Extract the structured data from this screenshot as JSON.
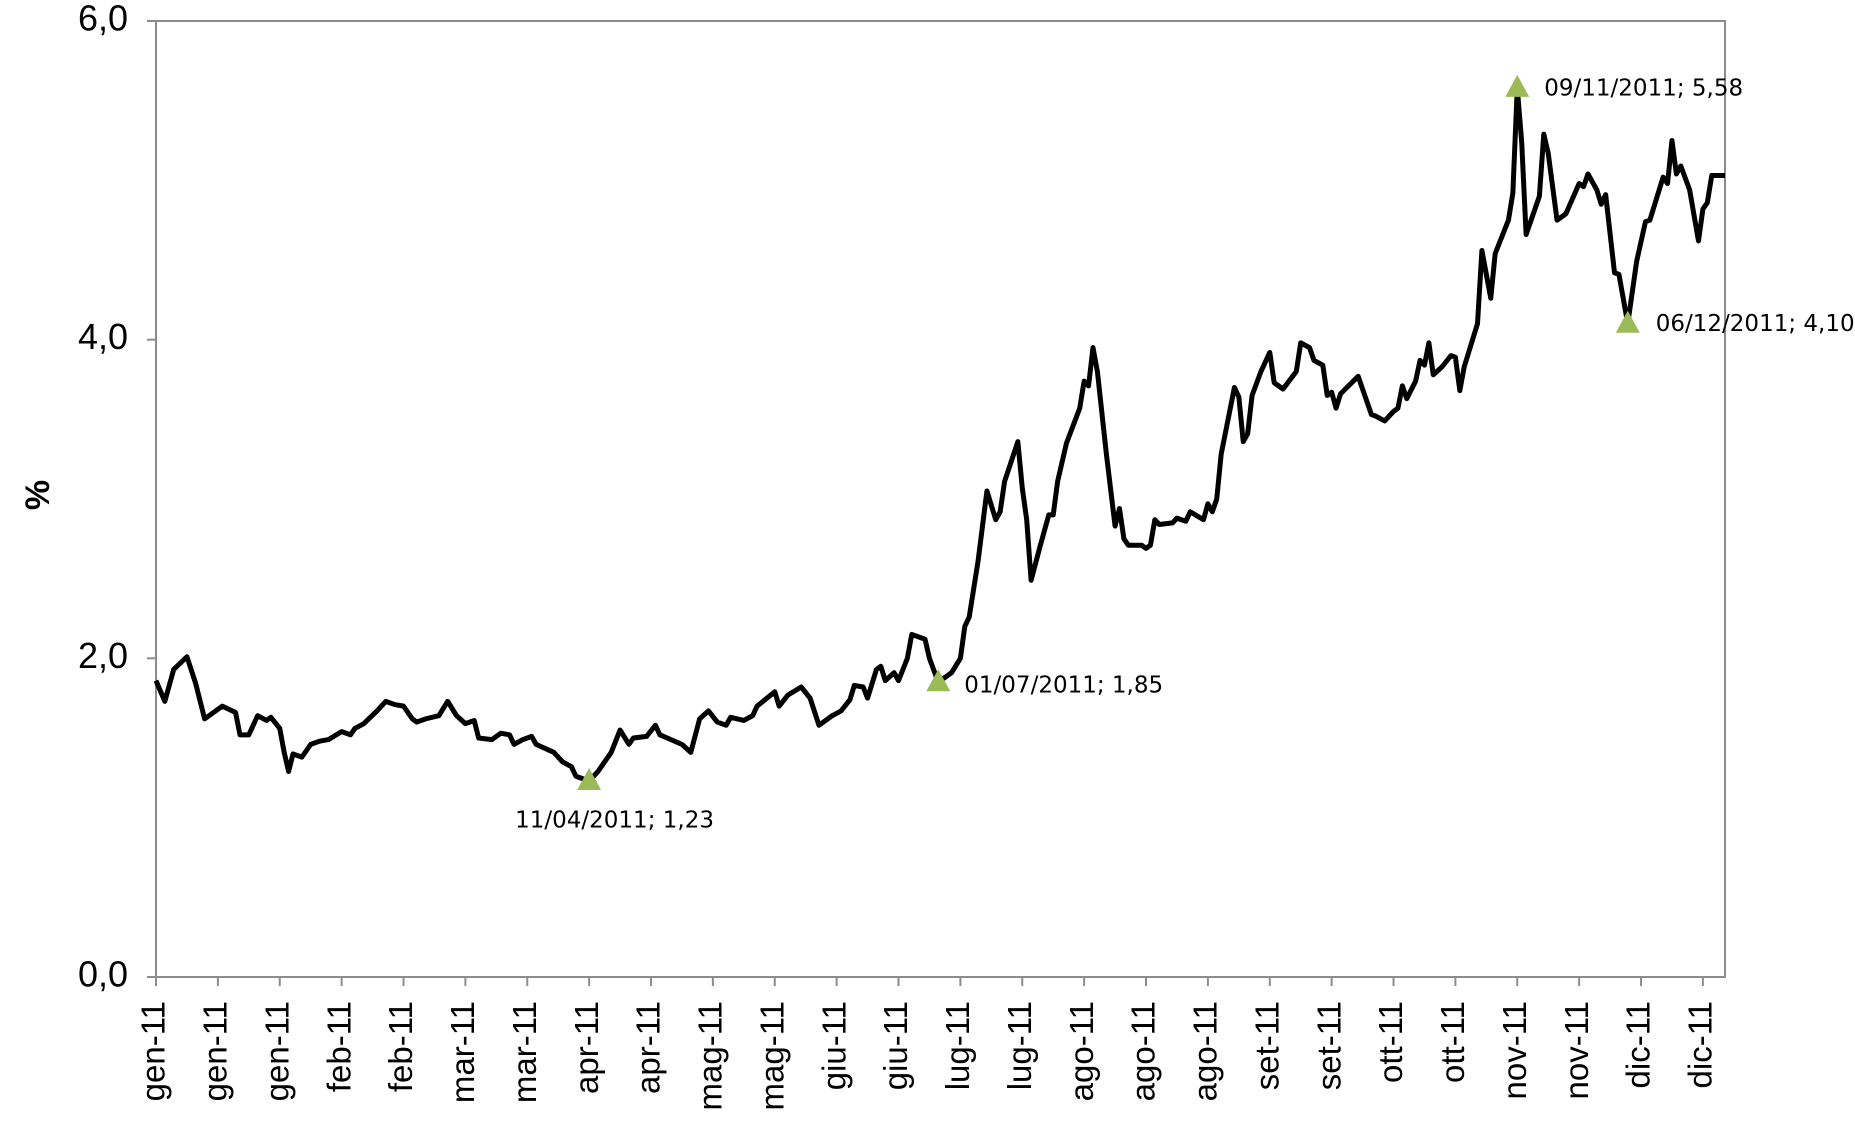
{
  "chart_data": {
    "type": "line",
    "y_label": "%",
    "xlim": [
      0,
      355
    ],
    "xticks": [
      {
        "value": 0,
        "label": "gen-11"
      },
      {
        "value": 14,
        "label": "gen-11"
      },
      {
        "value": 28,
        "label": "gen-11"
      },
      {
        "value": 42,
        "label": "feb-11"
      },
      {
        "value": 56,
        "label": "feb-11"
      },
      {
        "value": 70,
        "label": "mar-11"
      },
      {
        "value": 84,
        "label": "mar-11"
      },
      {
        "value": 98,
        "label": "apr-11"
      },
      {
        "value": 112,
        "label": "apr-11"
      },
      {
        "value": 126,
        "label": "mag-11"
      },
      {
        "value": 140,
        "label": "mag-11"
      },
      {
        "value": 154,
        "label": "giu-11"
      },
      {
        "value": 168,
        "label": "giu-11"
      },
      {
        "value": 182,
        "label": "lug-11"
      },
      {
        "value": 196,
        "label": "lug-11"
      },
      {
        "value": 210,
        "label": "ago-11"
      },
      {
        "value": 224,
        "label": "ago-11"
      },
      {
        "value": 238,
        "label": "ago-11"
      },
      {
        "value": 252,
        "label": "set-11"
      },
      {
        "value": 266,
        "label": "set-11"
      },
      {
        "value": 280,
        "label": "ott-11"
      },
      {
        "value": 294,
        "label": "ott-11"
      },
      {
        "value": 308,
        "label": "nov-11"
      },
      {
        "value": 322,
        "label": "nov-11"
      },
      {
        "value": 336,
        "label": "dic-11"
      },
      {
        "value": 350,
        "label": "dic-11"
      }
    ],
    "ylim": [
      0,
      6
    ],
    "yticks": [
      {
        "value": 0,
        "label": "0,0"
      },
      {
        "value": 2,
        "label": "2,0"
      },
      {
        "value": 4,
        "label": "4,0"
      },
      {
        "value": 6,
        "label": "6,0"
      }
    ],
    "color": "#000000",
    "x": [
      0,
      2,
      4,
      7,
      9,
      11,
      15,
      18,
      19,
      21,
      23,
      25,
      26,
      28,
      29,
      30,
      31,
      33,
      35,
      37,
      39,
      42,
      44,
      45,
      47,
      50,
      52,
      54,
      56,
      58,
      59,
      61,
      64,
      66,
      68,
      70,
      72,
      73,
      76,
      78,
      80,
      81,
      83,
      85,
      86,
      90,
      92,
      94,
      95,
      98,
      100,
      103,
      105,
      107,
      108,
      111,
      113,
      114,
      119,
      121,
      123,
      125,
      127,
      129,
      130,
      133,
      135,
      136,
      140,
      141,
      143,
      146,
      148,
      150,
      153,
      155,
      157,
      158,
      160,
      161,
      163,
      164,
      165,
      167,
      168,
      170,
      171,
      174,
      175,
      177,
      180,
      182,
      183,
      184,
      186,
      188,
      190,
      191,
      192,
      195,
      196,
      197,
      198,
      200,
      202,
      203,
      204,
      206,
      209,
      210,
      211,
      212,
      213,
      215,
      217,
      218,
      219,
      220,
      223,
      224,
      225,
      226,
      227,
      230,
      231,
      233,
      234,
      237,
      238,
      239,
      240,
      241,
      244,
      245,
      246,
      247,
      248,
      250,
      252,
      253,
      255,
      258,
      259,
      261,
      262,
      264,
      265,
      266,
      267,
      268,
      272,
      273,
      275,
      276,
      278,
      280,
      281,
      282,
      283,
      285,
      286,
      287,
      288,
      289,
      291,
      293,
      294,
      295,
      296,
      299,
      300,
      302,
      303,
      306,
      307,
      308,
      309,
      310,
      313,
      314,
      315,
      317,
      319,
      322,
      323,
      324,
      326,
      327,
      328,
      330,
      331,
      333,
      335,
      337,
      338,
      341,
      342,
      343,
      344,
      345,
      347,
      349,
      350,
      351,
      352,
      355
    ],
    "values": [
      1.86,
      1.73,
      1.93,
      2.01,
      1.84,
      1.62,
      1.7,
      1.66,
      1.52,
      1.52,
      1.64,
      1.61,
      1.63,
      1.56,
      1.41,
      1.29,
      1.4,
      1.38,
      1.46,
      1.48,
      1.49,
      1.54,
      1.52,
      1.56,
      1.59,
      1.67,
      1.73,
      1.71,
      1.7,
      1.62,
      1.6,
      1.62,
      1.64,
      1.73,
      1.64,
      1.59,
      1.61,
      1.5,
      1.49,
      1.53,
      1.52,
      1.46,
      1.49,
      1.51,
      1.46,
      1.41,
      1.35,
      1.32,
      1.26,
      1.23,
      1.29,
      1.41,
      1.55,
      1.46,
      1.5,
      1.51,
      1.58,
      1.52,
      1.46,
      1.41,
      1.62,
      1.67,
      1.6,
      1.58,
      1.63,
      1.61,
      1.64,
      1.7,
      1.79,
      1.7,
      1.77,
      1.82,
      1.75,
      1.58,
      1.64,
      1.67,
      1.74,
      1.83,
      1.82,
      1.75,
      1.93,
      1.95,
      1.86,
      1.91,
      1.86,
      2.0,
      2.15,
      2.12,
      2.0,
      1.85,
      1.91,
      2.0,
      2.2,
      2.26,
      2.61,
      3.05,
      2.87,
      2.92,
      3.11,
      3.36,
      3.07,
      2.87,
      2.49,
      2.7,
      2.9,
      2.9,
      3.11,
      3.35,
      3.57,
      3.74,
      3.71,
      3.95,
      3.8,
      3.29,
      2.83,
      2.94,
      2.75,
      2.71,
      2.71,
      2.69,
      2.71,
      2.87,
      2.84,
      2.85,
      2.88,
      2.86,
      2.92,
      2.87,
      2.97,
      2.92,
      3.0,
      3.28,
      3.7,
      3.64,
      3.36,
      3.41,
      3.65,
      3.8,
      3.92,
      3.73,
      3.69,
      3.8,
      3.98,
      3.95,
      3.87,
      3.84,
      3.65,
      3.67,
      3.57,
      3.66,
      3.77,
      3.69,
      3.53,
      3.52,
      3.49,
      3.55,
      3.57,
      3.71,
      3.63,
      3.74,
      3.87,
      3.84,
      3.98,
      3.78,
      3.83,
      3.9,
      3.89,
      3.68,
      3.83,
      4.1,
      4.56,
      4.26,
      4.54,
      4.75,
      4.92,
      5.58,
      5.24,
      4.66,
      4.9,
      5.29,
      5.17,
      4.75,
      4.79,
      4.98,
      4.96,
      5.04,
      4.94,
      4.85,
      4.91,
      4.42,
      4.41,
      4.1,
      4.49,
      4.74,
      4.75,
      5.02,
      4.98,
      5.25,
      5.04,
      5.09,
      4.94,
      4.62,
      4.82,
      4.86,
      5.03,
      5.03
    ],
    "marker_color": "#9bbb59",
    "annotations": [
      {
        "text": "11/04/2011; 1,23",
        "x": 98,
        "y": 1.23
      },
      {
        "text": "01/07/2011; 1,85",
        "x": 177,
        "y": 1.85
      },
      {
        "text": "09/11/2011; 5,58",
        "x": 308,
        "y": 5.58
      },
      {
        "text": "06/12/2011; 4,10",
        "x": 333,
        "y": 4.1
      }
    ]
  }
}
